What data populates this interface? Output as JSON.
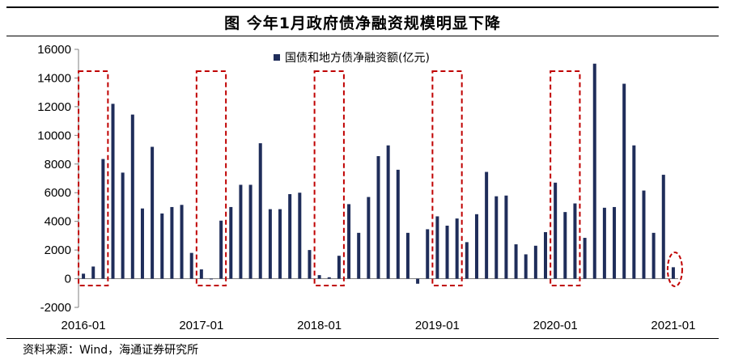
{
  "title": "图 今年1月政府债净融资规模明显下降",
  "source": "资料来源：Wind，海通证券研究所",
  "chart_data": {
    "type": "bar",
    "series": [
      {
        "name": "国债和地方债净融资额(亿元)",
        "color": "#1f2d5a",
        "values": [
          350,
          850,
          8350,
          12200,
          7400,
          11450,
          4900,
          9200,
          4550,
          5000,
          5150,
          1800,
          650,
          -50,
          4050,
          5000,
          6550,
          6550,
          9450,
          4850,
          4850,
          5900,
          6000,
          2000,
          250,
          100,
          1600,
          5200,
          3200,
          5700,
          8550,
          9300,
          7600,
          3200,
          -350,
          3450,
          4350,
          3700,
          4200,
          2550,
          4500,
          7450,
          5750,
          5800,
          2400,
          1700,
          2300,
          3250,
          6700,
          4650,
          5250,
          2850,
          15000,
          4950,
          5000,
          13600,
          9300,
          6150,
          3200,
          7250,
          800
        ]
      }
    ],
    "x_tick_labels": [
      "2016-01",
      "2017-01",
      "2018-01",
      "2019-01",
      "2020-01",
      "2021-01"
    ],
    "x_tick_indices": [
      0,
      12,
      24,
      36,
      48,
      60
    ],
    "ylim": [
      -2000,
      16000
    ],
    "y_ticks": [
      -2000,
      0,
      2000,
      4000,
      6000,
      8000,
      10000,
      12000,
      14000,
      16000
    ],
    "highlight_indices": [
      0,
      12,
      24,
      36,
      48
    ],
    "circled_index": 60,
    "highlight_color": "#c00000",
    "legend_position": "top-center",
    "grid": false
  }
}
